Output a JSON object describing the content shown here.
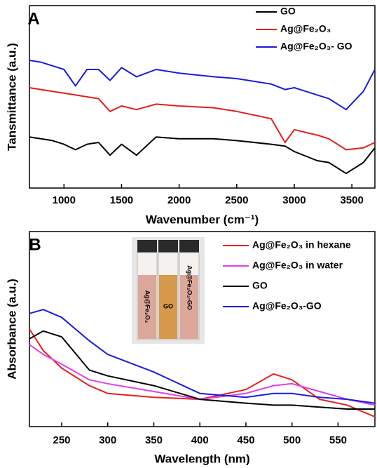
{
  "chart_data": [
    {
      "type": "line",
      "panel": "A",
      "x_label": "Wavenumber (cm⁻¹)",
      "y_label": "Tansmittance (a.u.)",
      "xlim": [
        700,
        3700
      ],
      "xticks": [
        1000,
        1500,
        2000,
        2500,
        3000,
        3500
      ],
      "ylim": [
        0,
        100
      ],
      "x": [
        700,
        800,
        900,
        1000,
        1100,
        1200,
        1300,
        1400,
        1500,
        1630,
        1800,
        2000,
        2300,
        2500,
        2800,
        2920,
        3000,
        3200,
        3300,
        3450,
        3600,
        3700
      ],
      "series": [
        {
          "name": "GO",
          "color": "#000000",
          "values": [
            28,
            27,
            26,
            24,
            21,
            24,
            25,
            18,
            24,
            18,
            28,
            27,
            27,
            26,
            24,
            23,
            20,
            15,
            14,
            8,
            14,
            22
          ]
        },
        {
          "name": "Ag@Fe₂O₃",
          "color": "#e0201b",
          "values": [
            55,
            54,
            53,
            52,
            51,
            50,
            49,
            42,
            45,
            43,
            46,
            45,
            44,
            42,
            38,
            25,
            32,
            29,
            27,
            21,
            22,
            25
          ]
        },
        {
          "name": "Ag@Fe₂O₃- GO",
          "color": "#1c1ce0",
          "values": [
            70,
            69,
            67,
            65,
            56,
            65,
            65,
            59,
            66,
            61,
            65,
            63,
            61,
            60,
            57,
            54,
            55,
            51,
            49,
            43,
            53,
            65
          ]
        }
      ]
    },
    {
      "type": "line",
      "panel": "B",
      "x_label": "Wavelength (nm)",
      "y_label": "Absorbance (a.u.)",
      "xlim": [
        215,
        590
      ],
      "xticks": [
        250,
        300,
        350,
        400,
        450,
        500,
        550
      ],
      "ylim": [
        0,
        100
      ],
      "x": [
        215,
        230,
        250,
        280,
        300,
        350,
        400,
        450,
        480,
        500,
        530,
        560,
        590
      ],
      "series": [
        {
          "name": "Ag@Fe₂O₃ in hexane",
          "color": "#e82020",
          "values": [
            50,
            39,
            30,
            21,
            17,
            15,
            14,
            19,
            27,
            24,
            14,
            11,
            5
          ]
        },
        {
          "name": "Ag@Fe₂O₃ in water",
          "color": "#e040e8",
          "values": [
            42,
            37,
            32,
            24,
            22,
            18,
            14,
            17,
            21,
            22,
            18,
            14,
            11
          ]
        },
        {
          "name": "GO",
          "color": "#000000",
          "values": [
            45,
            49,
            46,
            29,
            26,
            21,
            14,
            12,
            11,
            11,
            10,
            9,
            9
          ]
        },
        {
          "name": "Ag@Fe₂O₃-GO",
          "color": "#1c1ce0",
          "values": [
            58,
            60,
            56,
            44,
            37,
            28,
            17,
            15,
            17,
            17,
            15,
            14,
            12
          ]
        }
      ],
      "inset_labels": [
        "Ag@Fe₂O₃",
        "GO",
        "Ag@Fe₂O₃-GO"
      ]
    }
  ]
}
